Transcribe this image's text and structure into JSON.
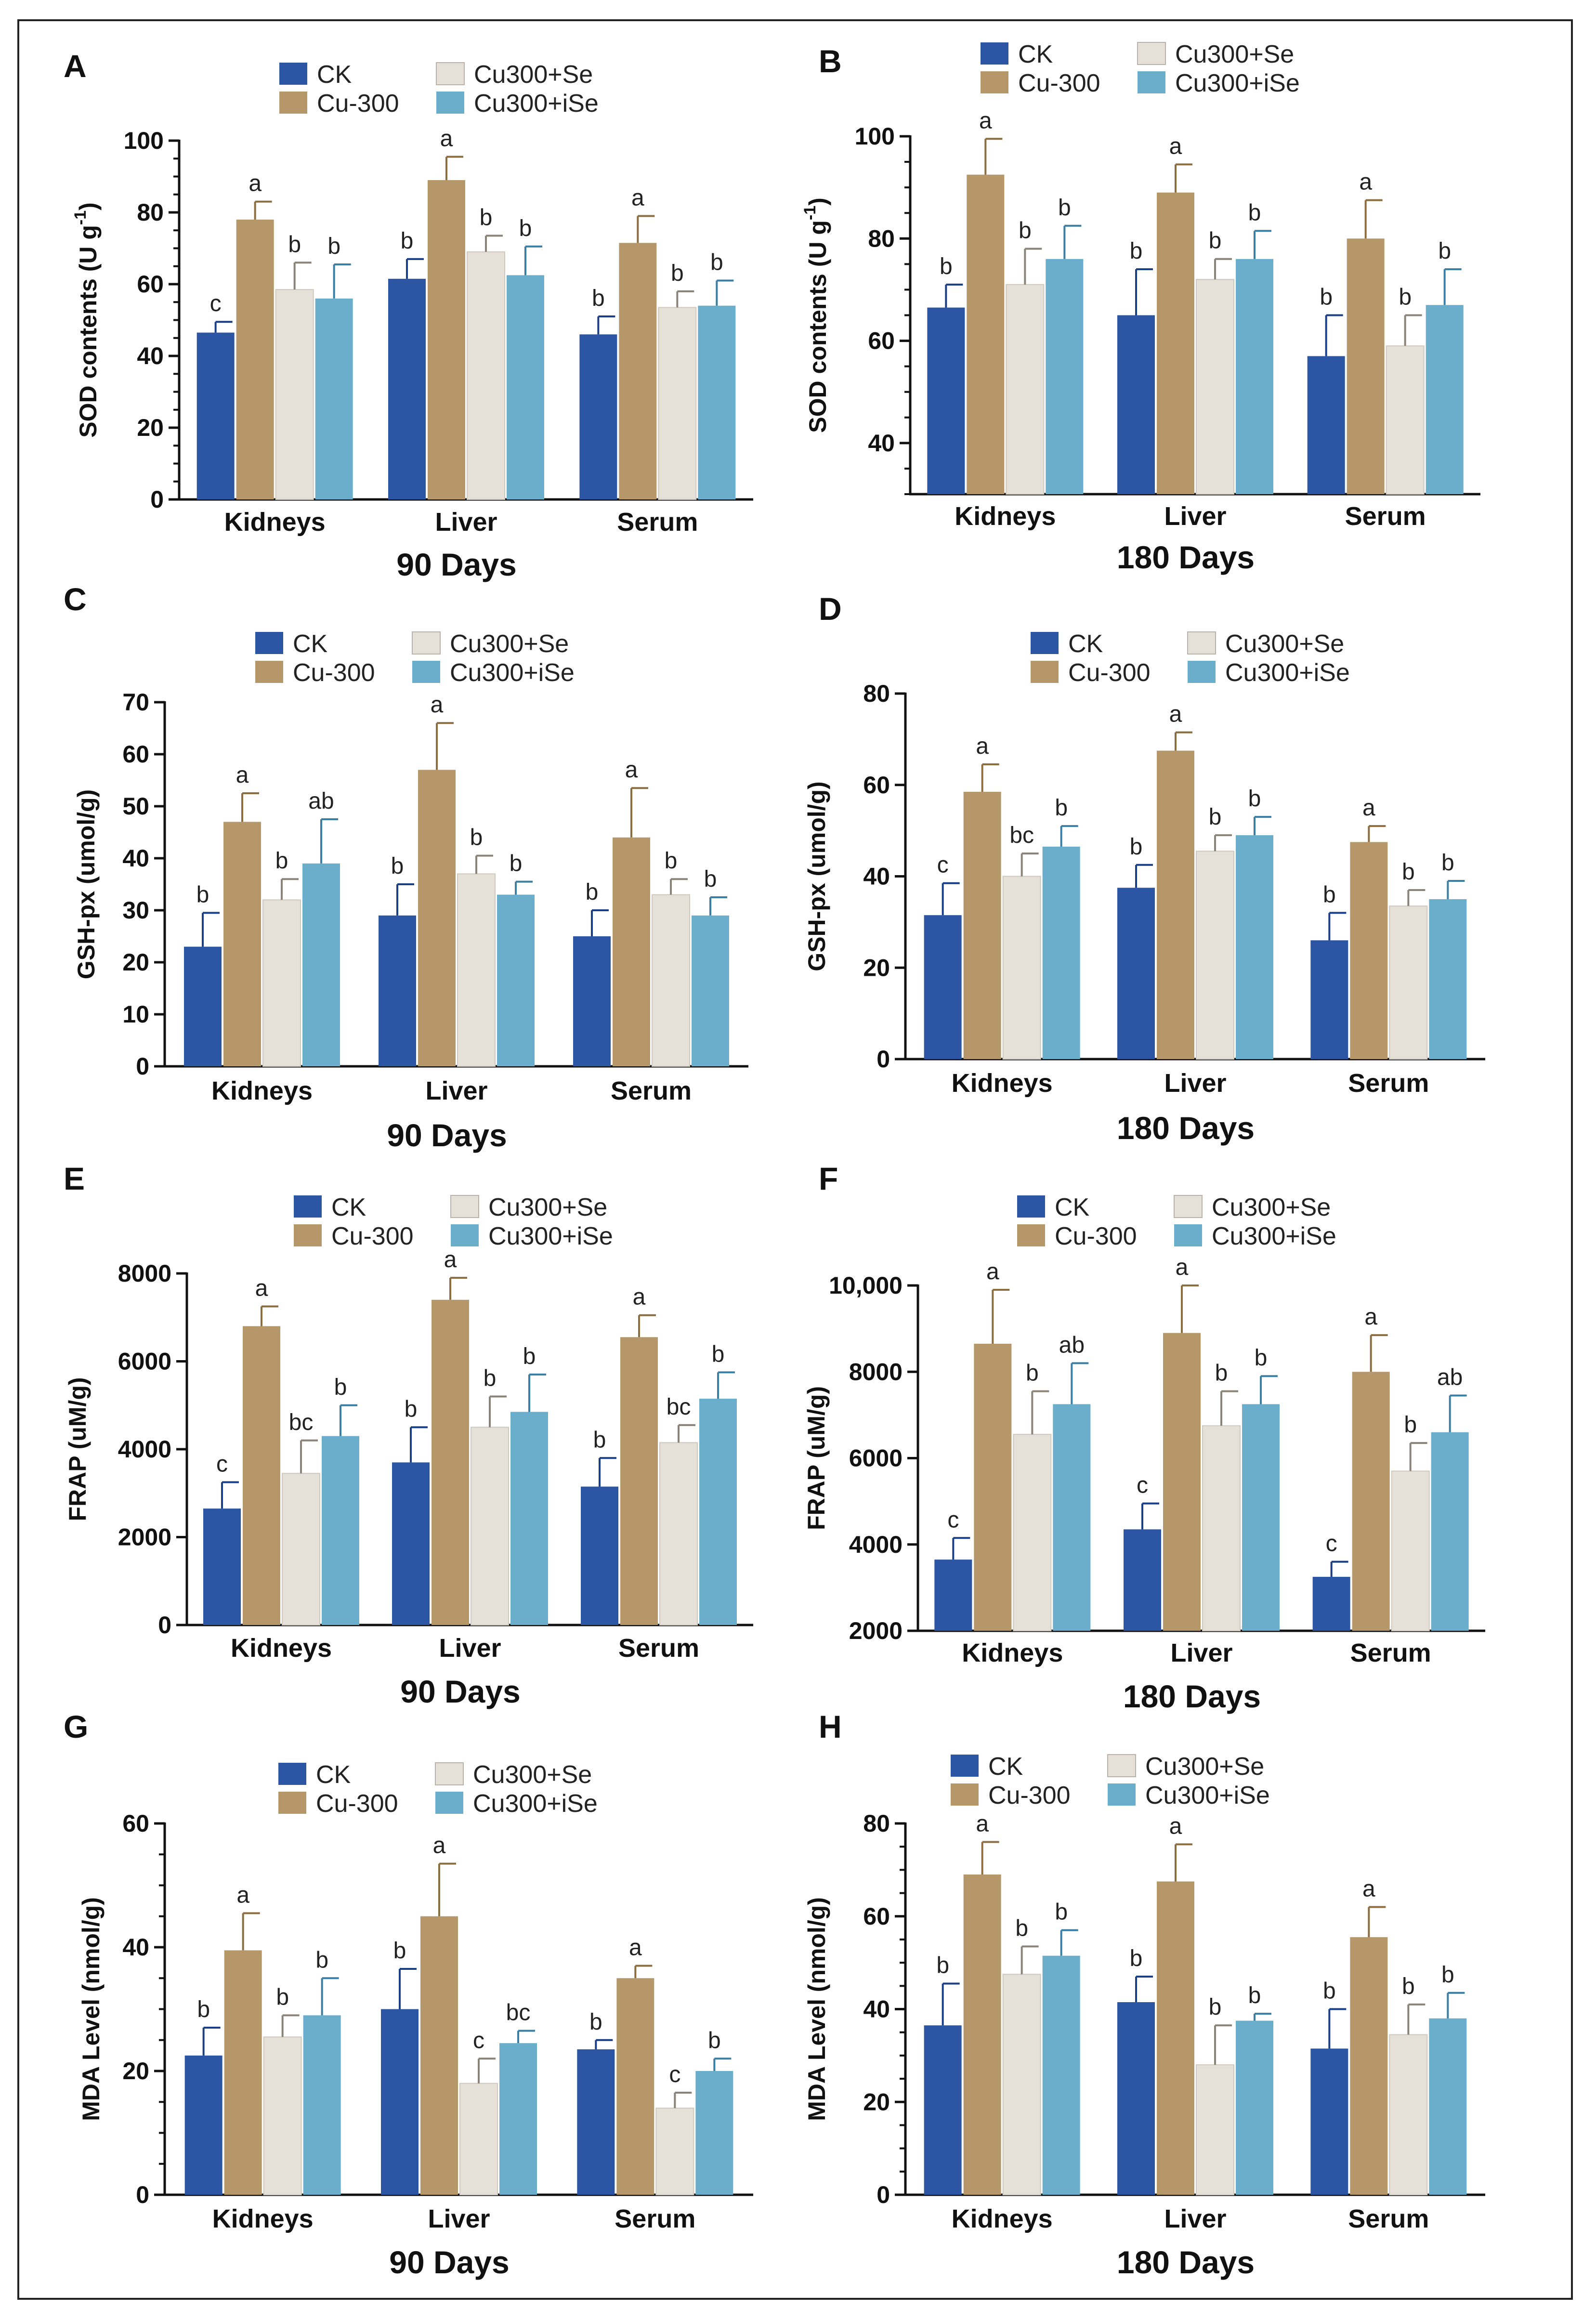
{
  "legend_labels": [
    "CK",
    "Cu-300",
    "Cu300+Se",
    "Cu300+iSe"
  ],
  "colors": {
    "CK": "#2c55a4",
    "Cu-300": "#b5976a",
    "Cu300+Se": "#e5e0d8",
    "Cu300+iSe": "#6aaecb",
    "axis": "#111111",
    "errorbar_ck": "#1a3f87",
    "errorbar_cu300": "#8c6d3f",
    "errorbar_se": "#8a8378",
    "errorbar_ise": "#3a7fa3"
  },
  "chart_data": [
    {
      "panel": "A",
      "type": "bar",
      "title": "90 Days",
      "ylabel": "SOD contents (U g",
      "ylabel_sup": "-1",
      "ylabel_end": ")",
      "categories": [
        "Kidneys",
        "Liver",
        "Serum"
      ],
      "ylim": [
        0,
        100
      ],
      "ticks": [
        0,
        20,
        40,
        60,
        80,
        100
      ],
      "tick_labels": [
        "0",
        "20",
        "40",
        "60",
        "80",
        "100"
      ],
      "minor_step": 5,
      "series": [
        {
          "name": "CK",
          "values": [
            46.5,
            61.5,
            46
          ],
          "errors": [
            3,
            5.5,
            5
          ],
          "letters": [
            "c",
            "b",
            "b"
          ]
        },
        {
          "name": "Cu-300",
          "values": [
            78,
            89,
            71.5
          ],
          "errors": [
            5,
            6.5,
            7.5
          ],
          "letters": [
            "a",
            "a",
            "a"
          ]
        },
        {
          "name": "Cu300+Se",
          "values": [
            58.5,
            69,
            53.5
          ],
          "errors": [
            7.5,
            4.5,
            4.5
          ],
          "letters": [
            "b",
            "b",
            "b"
          ]
        },
        {
          "name": "Cu300+iSe",
          "values": [
            56,
            62.5,
            54
          ],
          "errors": [
            9.5,
            8,
            7
          ],
          "letters": [
            "b",
            "b",
            "b"
          ]
        }
      ]
    },
    {
      "panel": "B",
      "type": "bar",
      "title": "180 Days",
      "ylabel": "SOD contents (U g",
      "ylabel_sup": "-1",
      "ylabel_end": ")",
      "categories": [
        "Kidneys",
        "Liver",
        "Serum"
      ],
      "ylim": [
        30,
        100
      ],
      "ticks": [
        40,
        60,
        80,
        100
      ],
      "tick_labels": [
        "40",
        "60",
        "80",
        "100"
      ],
      "minor_step": 5,
      "series": [
        {
          "name": "CK",
          "values": [
            66.5,
            65,
            57
          ],
          "errors": [
            4.5,
            9,
            8
          ],
          "letters": [
            "b",
            "b",
            "b"
          ]
        },
        {
          "name": "Cu-300",
          "values": [
            92.5,
            89,
            80
          ],
          "errors": [
            7,
            5.5,
            7.5
          ],
          "letters": [
            "a",
            "a",
            "a"
          ]
        },
        {
          "name": "Cu300+Se",
          "values": [
            71,
            72,
            59
          ],
          "errors": [
            7,
            4,
            6
          ],
          "letters": [
            "b",
            "b",
            "b"
          ]
        },
        {
          "name": "Cu300+iSe",
          "values": [
            76,
            76,
            67
          ],
          "errors": [
            6.5,
            5.5,
            7
          ],
          "letters": [
            "b",
            "b",
            "b"
          ]
        }
      ]
    },
    {
      "panel": "C",
      "type": "bar",
      "title": "90 Days",
      "ylabel": "GSH-px (umol/g)",
      "categories": [
        "Kidneys",
        "Liver",
        "Serum"
      ],
      "ylim": [
        0,
        70
      ],
      "ticks": [
        0,
        10,
        20,
        30,
        40,
        50,
        60,
        70
      ],
      "tick_labels": [
        "0",
        "10",
        "20",
        "30",
        "40",
        "50",
        "60",
        "70"
      ],
      "minor_step": 0,
      "series": [
        {
          "name": "CK",
          "values": [
            23,
            29,
            25
          ],
          "errors": [
            6.5,
            6,
            5
          ],
          "letters": [
            "b",
            "b",
            "b"
          ]
        },
        {
          "name": "Cu-300",
          "values": [
            47,
            57,
            44
          ],
          "errors": [
            5.5,
            9,
            9.5
          ],
          "letters": [
            "a",
            "a",
            "a"
          ]
        },
        {
          "name": "Cu300+Se",
          "values": [
            32,
            37,
            33
          ],
          "errors": [
            4,
            3.5,
            3
          ],
          "letters": [
            "b",
            "b",
            "b"
          ]
        },
        {
          "name": "Cu300+iSe",
          "values": [
            39,
            33,
            29
          ],
          "errors": [
            8.5,
            2.5,
            3.5
          ],
          "letters": [
            "ab",
            "b",
            "b"
          ]
        }
      ]
    },
    {
      "panel": "D",
      "type": "bar",
      "title": "180 Days",
      "ylabel": "GSH-px (umol/g)",
      "categories": [
        "Kidneys",
        "Liver",
        "Serum"
      ],
      "ylim": [
        0,
        80
      ],
      "ticks": [
        0,
        20,
        40,
        60,
        80
      ],
      "tick_labels": [
        "0",
        "20",
        "40",
        "60",
        "80"
      ],
      "minor_step": 0,
      "series": [
        {
          "name": "CK",
          "values": [
            31.5,
            37.5,
            26
          ],
          "errors": [
            7,
            5,
            6
          ],
          "letters": [
            "c",
            "b",
            "b"
          ]
        },
        {
          "name": "Cu-300",
          "values": [
            58.5,
            67.5,
            47.5
          ],
          "errors": [
            6,
            4,
            3.5
          ],
          "letters": [
            "a",
            "a",
            "a"
          ]
        },
        {
          "name": "Cu300+Se",
          "values": [
            40,
            45.5,
            33.5
          ],
          "errors": [
            5,
            3.5,
            3.5
          ],
          "letters": [
            "bc",
            "b",
            "b"
          ]
        },
        {
          "name": "Cu300+iSe",
          "values": [
            46.5,
            49,
            35
          ],
          "errors": [
            4.5,
            4,
            4
          ],
          "letters": [
            "b",
            "b",
            "b"
          ]
        }
      ]
    },
    {
      "panel": "E",
      "type": "bar",
      "title": "90 Days",
      "ylabel": "FRAP (uM/g)",
      "categories": [
        "Kidneys",
        "Liver",
        "Serum"
      ],
      "ylim": [
        0,
        8000
      ],
      "ticks": [
        0,
        2000,
        4000,
        6000,
        8000
      ],
      "tick_labels": [
        "0",
        "2000",
        "4000",
        "6000",
        "8000"
      ],
      "minor_step": 0,
      "series": [
        {
          "name": "CK",
          "values": [
            2650,
            3700,
            3150
          ],
          "errors": [
            600,
            800,
            650
          ],
          "letters": [
            "c",
            "b",
            "b"
          ]
        },
        {
          "name": "Cu-300",
          "values": [
            6800,
            7400,
            6550
          ],
          "errors": [
            450,
            500,
            500
          ],
          "letters": [
            "a",
            "a",
            "a"
          ]
        },
        {
          "name": "Cu300+Se",
          "values": [
            3450,
            4500,
            4150
          ],
          "errors": [
            750,
            700,
            400
          ],
          "letters": [
            "bc",
            "b",
            "bc"
          ]
        },
        {
          "name": "Cu300+iSe",
          "values": [
            4300,
            4850,
            5150
          ],
          "errors": [
            700,
            850,
            600
          ],
          "letters": [
            "b",
            "b",
            "b"
          ]
        }
      ]
    },
    {
      "panel": "F",
      "type": "bar",
      "title": "180 Days",
      "ylabel": "FRAP (uM/g)",
      "categories": [
        "Kidneys",
        "Liver",
        "Serum"
      ],
      "ylim": [
        2000,
        10000
      ],
      "ticks": [
        2000,
        4000,
        6000,
        8000,
        10000
      ],
      "tick_labels": [
        "2000",
        "4000",
        "6000",
        "8000",
        "10,000"
      ],
      "minor_step": 0,
      "series": [
        {
          "name": "CK",
          "values": [
            3650,
            4350,
            3250
          ],
          "errors": [
            500,
            600,
            350
          ],
          "letters": [
            "c",
            "c",
            "c"
          ]
        },
        {
          "name": "Cu-300",
          "values": [
            8650,
            8900,
            8000
          ],
          "errors": [
            1250,
            1100,
            850
          ],
          "letters": [
            "a",
            "a",
            "a"
          ]
        },
        {
          "name": "Cu300+Se",
          "values": [
            6550,
            6750,
            5700
          ],
          "errors": [
            1000,
            800,
            650
          ],
          "letters": [
            "b",
            "b",
            "b"
          ]
        },
        {
          "name": "Cu300+iSe",
          "values": [
            7250,
            7250,
            6600
          ],
          "errors": [
            950,
            650,
            850
          ],
          "letters": [
            "ab",
            "b",
            "ab"
          ]
        }
      ]
    },
    {
      "panel": "G",
      "type": "bar",
      "title": "90 Days",
      "ylabel": "MDA Level (nmol/g)",
      "categories": [
        "Kidneys",
        "Liver",
        "Serum"
      ],
      "ylim": [
        0,
        60
      ],
      "ticks": [
        0,
        20,
        40,
        60
      ],
      "tick_labels": [
        "0",
        "20",
        "40",
        "60"
      ],
      "minor_step": 5,
      "series": [
        {
          "name": "CK",
          "values": [
            22.5,
            30,
            23.5
          ],
          "errors": [
            4.5,
            6.5,
            1.5
          ],
          "letters": [
            "b",
            "b",
            "b"
          ]
        },
        {
          "name": "Cu-300",
          "values": [
            39.5,
            45,
            35
          ],
          "errors": [
            6,
            8.5,
            2
          ],
          "letters": [
            "a",
            "a",
            "a"
          ]
        },
        {
          "name": "Cu300+Se",
          "values": [
            25.5,
            18,
            14
          ],
          "errors": [
            3.5,
            4,
            2.5
          ],
          "letters": [
            "b",
            "c",
            "c"
          ]
        },
        {
          "name": "Cu300+iSe",
          "values": [
            29,
            24.5,
            20
          ],
          "errors": [
            6,
            2,
            2
          ],
          "letters": [
            "b",
            "bc",
            "b"
          ]
        }
      ]
    },
    {
      "panel": "H",
      "type": "bar",
      "title": "180 Days",
      "ylabel": "MDA Level (nmol/g)",
      "categories": [
        "Kidneys",
        "Liver",
        "Serum"
      ],
      "ylim": [
        0,
        80
      ],
      "ticks": [
        0,
        20,
        40,
        60,
        80
      ],
      "tick_labels": [
        "0",
        "20",
        "40",
        "60",
        "80"
      ],
      "minor_step": 5,
      "series": [
        {
          "name": "CK",
          "values": [
            36.5,
            41.5,
            31.5
          ],
          "errors": [
            9,
            5.5,
            8.5
          ],
          "letters": [
            "b",
            "b",
            "b"
          ]
        },
        {
          "name": "Cu-300",
          "values": [
            69,
            67.5,
            55.5
          ],
          "errors": [
            7,
            8,
            6.5
          ],
          "letters": [
            "a",
            "a",
            "a"
          ]
        },
        {
          "name": "Cu300+Se",
          "values": [
            47.5,
            28,
            34.5
          ],
          "errors": [
            6,
            8.5,
            6.5
          ],
          "letters": [
            "b",
            "b",
            "b"
          ]
        },
        {
          "name": "Cu300+iSe",
          "values": [
            51.5,
            37.5,
            38
          ],
          "errors": [
            5.5,
            1.5,
            5.5
          ],
          "letters": [
            "b",
            "b",
            "b"
          ]
        }
      ]
    }
  ]
}
